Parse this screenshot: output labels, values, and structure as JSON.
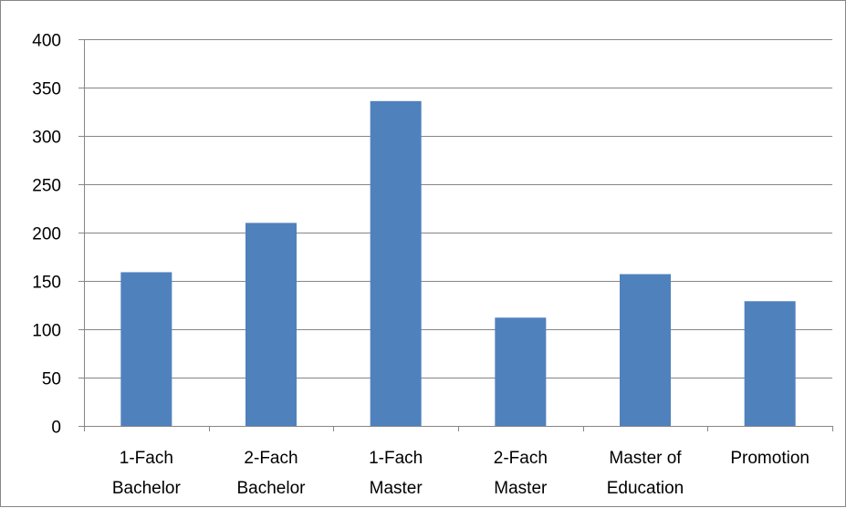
{
  "chart_data": {
    "type": "bar",
    "categories": [
      [
        "1-Fach",
        "Bachelor"
      ],
      [
        "2-Fach",
        "Bachelor"
      ],
      [
        "1-Fach",
        "Master"
      ],
      [
        "2-Fach",
        "Master"
      ],
      [
        "Master of",
        "Education"
      ],
      [
        "Promotion"
      ]
    ],
    "values": [
      159,
      210,
      336,
      112,
      157,
      129
    ],
    "ylim": [
      0,
      400
    ],
    "yticks": [
      "0",
      "50",
      "100",
      "150",
      "200",
      "250",
      "300",
      "350",
      "400"
    ],
    "grid": true,
    "legend": "none",
    "bar_color": "#4f81bd",
    "grid_color": "#868686"
  }
}
